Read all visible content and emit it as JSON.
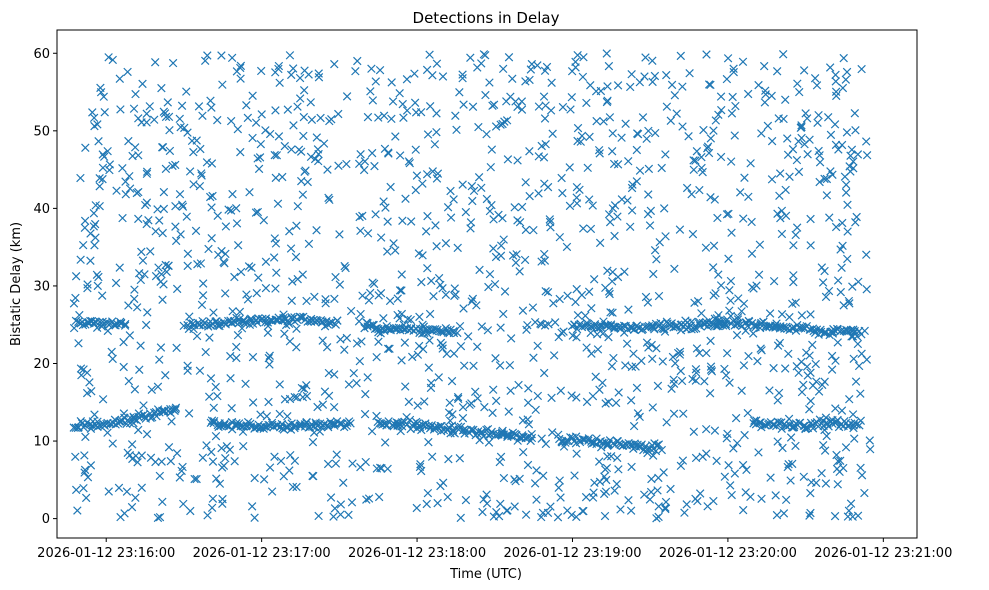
{
  "chart_data": {
    "type": "scatter",
    "title": "Detections in Delay",
    "xlabel": "Time (UTC)",
    "ylabel": "Bistatic Delay (km)",
    "marker": "x",
    "color": "#1f77b4",
    "xlim_seconds": [
      -19,
      313
    ],
    "ylim": [
      -2.5,
      63
    ],
    "x_ticks": [
      {
        "seconds": 0,
        "label": "2026-01-12 23:16:00"
      },
      {
        "seconds": 60,
        "label": "2026-01-12 23:17:00"
      },
      {
        "seconds": 120,
        "label": "2026-01-12 23:18:00"
      },
      {
        "seconds": 180,
        "label": "2026-01-12 23:19:00"
      },
      {
        "seconds": 240,
        "label": "2026-01-12 23:20:00"
      },
      {
        "seconds": 300,
        "label": "2026-01-12 23:21:00"
      }
    ],
    "y_ticks": [
      0,
      10,
      20,
      30,
      40,
      50,
      60
    ],
    "x_range_seconds": [
      -12.5,
      295
    ],
    "y_range": [
      0,
      60
    ],
    "noise_point_count": 1500,
    "tracks": [
      {
        "name": "track-1",
        "points": [
          [
            -12.5,
            11.9
          ],
          [
            -5,
            12.1
          ],
          [
            0,
            12.0
          ],
          [
            5,
            12.5
          ],
          [
            15,
            13.2
          ],
          [
            22,
            13.8
          ],
          [
            28,
            14.2
          ]
        ]
      },
      {
        "name": "track-2",
        "points": [
          [
            40,
            12.3
          ],
          [
            60,
            11.8
          ],
          [
            80,
            11.9
          ],
          [
            95,
            12.3
          ]
        ]
      },
      {
        "name": "track-3",
        "points": [
          [
            105,
            12.3
          ],
          [
            118,
            12.2
          ],
          [
            125,
            11.8
          ],
          [
            140,
            11.3
          ],
          [
            152,
            10.8
          ],
          [
            165,
            10.5
          ]
        ]
      },
      {
        "name": "track-4",
        "points": [
          [
            175,
            10.1
          ],
          [
            190,
            9.9
          ],
          [
            205,
            9.3
          ],
          [
            215,
            9.0
          ]
        ]
      },
      {
        "name": "track-5",
        "points": [
          [
            250,
            12.3
          ],
          [
            265,
            12.0
          ],
          [
            280,
            12.3
          ],
          [
            292,
            12.0
          ]
        ]
      },
      {
        "name": "track-6",
        "points": [
          [
            -12,
            25.3
          ],
          [
            0,
            25.1
          ],
          [
            8,
            25.0
          ]
        ]
      },
      {
        "name": "track-7",
        "points": [
          [
            30,
            25.0
          ],
          [
            45,
            25.2
          ],
          [
            60,
            25.5
          ],
          [
            75,
            25.8
          ],
          [
            90,
            25.2
          ]
        ]
      },
      {
        "name": "track-8",
        "points": [
          [
            100,
            24.6
          ],
          [
            115,
            24.4
          ],
          [
            125,
            24.2
          ],
          [
            135,
            24.0
          ]
        ]
      },
      {
        "name": "track-9",
        "points": [
          [
            180,
            25.0
          ],
          [
            200,
            24.6
          ],
          [
            220,
            24.8
          ],
          [
            240,
            25.2
          ]
        ]
      },
      {
        "name": "track-10",
        "points": [
          [
            235,
            25.5
          ],
          [
            260,
            24.8
          ],
          [
            275,
            24.3
          ],
          [
            292,
            23.9
          ]
        ]
      }
    ]
  }
}
